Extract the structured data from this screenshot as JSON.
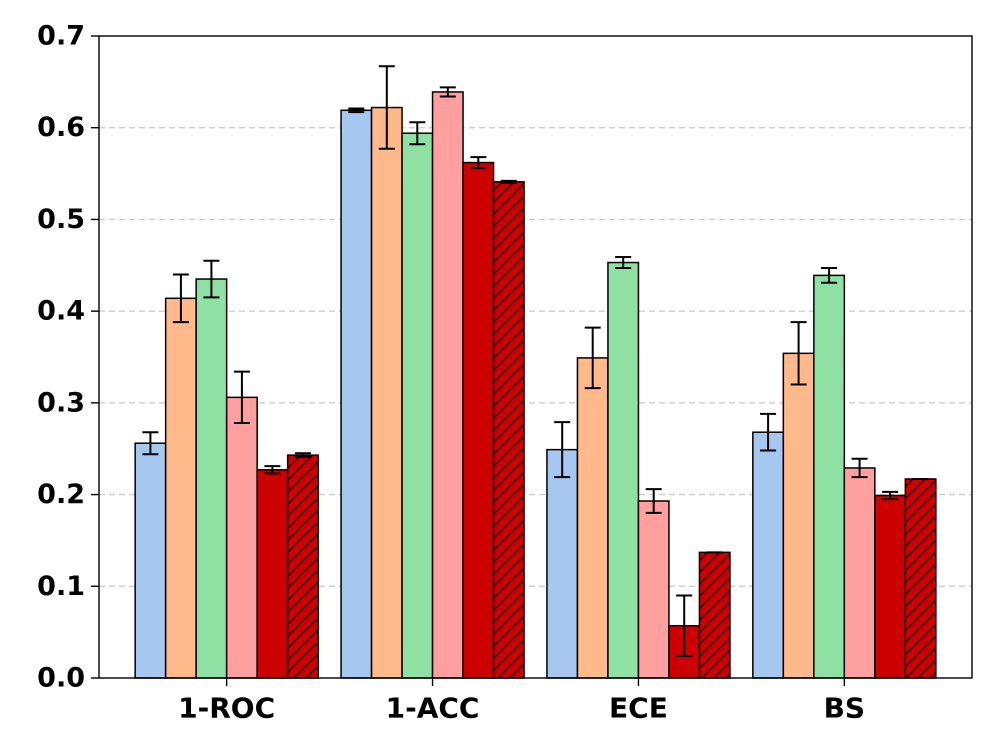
{
  "chart_data": {
    "type": "bar",
    "categories": [
      "1-ROC",
      "1-ACC",
      "ECE",
      "BS"
    ],
    "series": [
      {
        "color": "#a6c8f0",
        "hatch": false,
        "values": [
          0.256,
          0.619,
          0.249,
          0.268
        ],
        "errors": [
          0.012,
          0.002,
          0.03,
          0.02
        ]
      },
      {
        "color": "#ffb98a",
        "hatch": false,
        "values": [
          0.414,
          0.622,
          0.349,
          0.354
        ],
        "errors": [
          0.026,
          0.045,
          0.033,
          0.034
        ]
      },
      {
        "color": "#8fe0a3",
        "hatch": false,
        "values": [
          0.435,
          0.594,
          0.453,
          0.439
        ],
        "errors": [
          0.02,
          0.012,
          0.006,
          0.008
        ]
      },
      {
        "color": "#ff9f9f",
        "hatch": false,
        "values": [
          0.306,
          0.639,
          0.193,
          0.229
        ],
        "errors": [
          0.028,
          0.005,
          0.013,
          0.01
        ]
      },
      {
        "color": "#cc0000",
        "hatch": false,
        "values": [
          0.227,
          0.562,
          0.057,
          0.199
        ],
        "errors": [
          0.004,
          0.006,
          0.033,
          0.004
        ]
      },
      {
        "color": "#cc0000",
        "hatch": true,
        "values": [
          0.243,
          0.541,
          0.137,
          0.217
        ],
        "errors": [
          0.002,
          0.001,
          0.0,
          0.0
        ]
      }
    ],
    "title": "",
    "xlabel": "",
    "ylabel": "",
    "ylim": [
      0,
      0.7
    ],
    "yticks": [
      "0.0",
      "0.1",
      "0.2",
      "0.3",
      "0.4",
      "0.5",
      "0.6",
      "0.7"
    ],
    "grid": "horizontal dashed",
    "legend": "none"
  }
}
